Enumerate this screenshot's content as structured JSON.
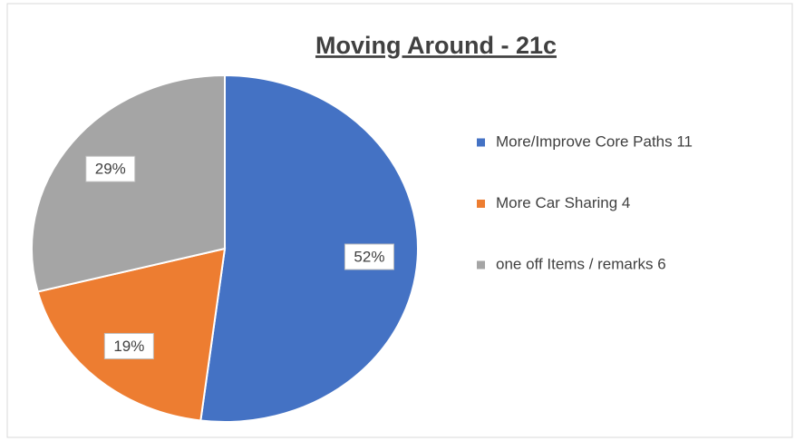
{
  "chart_data": {
    "type": "pie",
    "title": "Moving Around - 21c",
    "categories": [
      "More/Improve Core Paths 11",
      "More Car Sharing 4",
      "one off Items / remarks 6"
    ],
    "values": [
      52,
      19,
      29
    ],
    "value_labels": [
      "52%",
      "19%",
      "29%"
    ],
    "colors": [
      "#4472c4",
      "#ed7d31",
      "#a5a5a5"
    ],
    "legend": "right"
  }
}
